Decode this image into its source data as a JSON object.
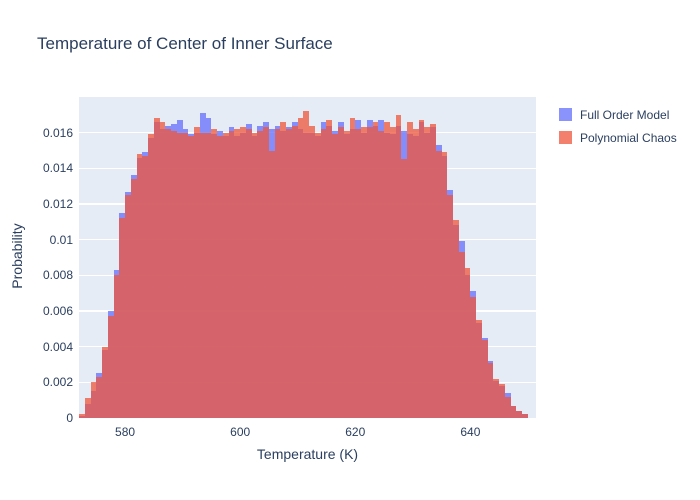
{
  "colors": {
    "page_bg": "#ffffff",
    "plot_bg": "#e5ecf6",
    "grid": "#ffffff",
    "text": "#2a3f5f",
    "full_order_model": "rgba(99,110,250,0.75)",
    "polynomial_chaos": "rgba(239,85,59,0.75)"
  },
  "chart_data": {
    "type": "bar",
    "subtype": "overlaid-histogram",
    "title": "Temperature of Center of Inner Surface",
    "xlabel": "Temperature (K)",
    "ylabel": "Probability",
    "grid": true,
    "legend_position": "outside-top-right",
    "xlim": [
      572,
      651.4
    ],
    "ylim": [
      0,
      0.018
    ],
    "bin_start": 572,
    "bin_width": 1,
    "x_ticks": {
      "values": [
        580,
        600,
        620,
        640
      ],
      "labels": [
        "580",
        "600",
        "620",
        "640"
      ]
    },
    "y_ticks": {
      "values": [
        0,
        0.002,
        0.004,
        0.006,
        0.008,
        0.01,
        0.012,
        0.014,
        0.016
      ],
      "labels": [
        "0",
        "0.002",
        "0.004",
        "0.006",
        "0.008",
        "0.01",
        "0.012",
        "0.014",
        "0.016"
      ]
    },
    "series": [
      {
        "name": "Full Order Model",
        "color": "rgba(99,110,250,0.75)",
        "values": [
          0.0001,
          0.0008,
          0.0015,
          0.0025,
          0.0038,
          0.006,
          0.0083,
          0.0115,
          0.0127,
          0.0136,
          0.0146,
          0.0149,
          0.0157,
          0.0166,
          0.0162,
          0.0164,
          0.0165,
          0.0167,
          0.0162,
          0.0159,
          0.016,
          0.0171,
          0.0168,
          0.0159,
          0.0161,
          0.0158,
          0.0163,
          0.0158,
          0.016,
          0.0165,
          0.0158,
          0.0164,
          0.0166,
          0.0162,
          0.0164,
          0.0161,
          0.0163,
          0.0166,
          0.0162,
          0.016,
          0.016,
          0.0158,
          0.0166,
          0.0164,
          0.0161,
          0.0166,
          0.0159,
          0.0162,
          0.0167,
          0.016,
          0.0167,
          0.0164,
          0.0167,
          0.016,
          0.0159,
          0.0164,
          0.0161,
          0.0159,
          0.0158,
          0.0166,
          0.016,
          0.0163,
          0.0153,
          0.0147,
          0.0128,
          0.0108,
          0.0099,
          0.008,
          0.0071,
          0.0053,
          0.0045,
          0.0032,
          0.0021,
          0.0018,
          0.0014,
          0.0007,
          0.0004,
          0.0002
        ]
      },
      {
        "name": "Polynomial Chaos",
        "color": "rgba(239,85,59,0.75)",
        "values": [
          0.0002,
          0.0011,
          0.002,
          0.0023,
          0.004,
          0.0057,
          0.008,
          0.0112,
          0.0125,
          0.0134,
          0.0148,
          0.0147,
          0.0159,
          0.0168,
          0.0166,
          0.0162,
          0.0161,
          0.016,
          0.016,
          0.0158,
          0.0163,
          0.016,
          0.016,
          0.0162,
          0.0158,
          0.016,
          0.0161,
          0.0162,
          0.0163,
          0.0162,
          0.016,
          0.0161,
          0.0163,
          0.015,
          0.0162,
          0.0166,
          0.0162,
          0.0164,
          0.0168,
          0.0172,
          0.0164,
          0.016,
          0.0162,
          0.0167,
          0.0159,
          0.0163,
          0.0161,
          0.0168,
          0.0162,
          0.0163,
          0.0163,
          0.0166,
          0.0161,
          0.0166,
          0.0163,
          0.017,
          0.0145,
          0.0166,
          0.0162,
          0.0167,
          0.0163,
          0.0165,
          0.015,
          0.0149,
          0.0125,
          0.0111,
          0.0093,
          0.0084,
          0.0068,
          0.0055,
          0.0044,
          0.0031,
          0.0022,
          0.0019,
          0.0012,
          0.0007,
          0.0004,
          0.0002
        ]
      }
    ]
  }
}
